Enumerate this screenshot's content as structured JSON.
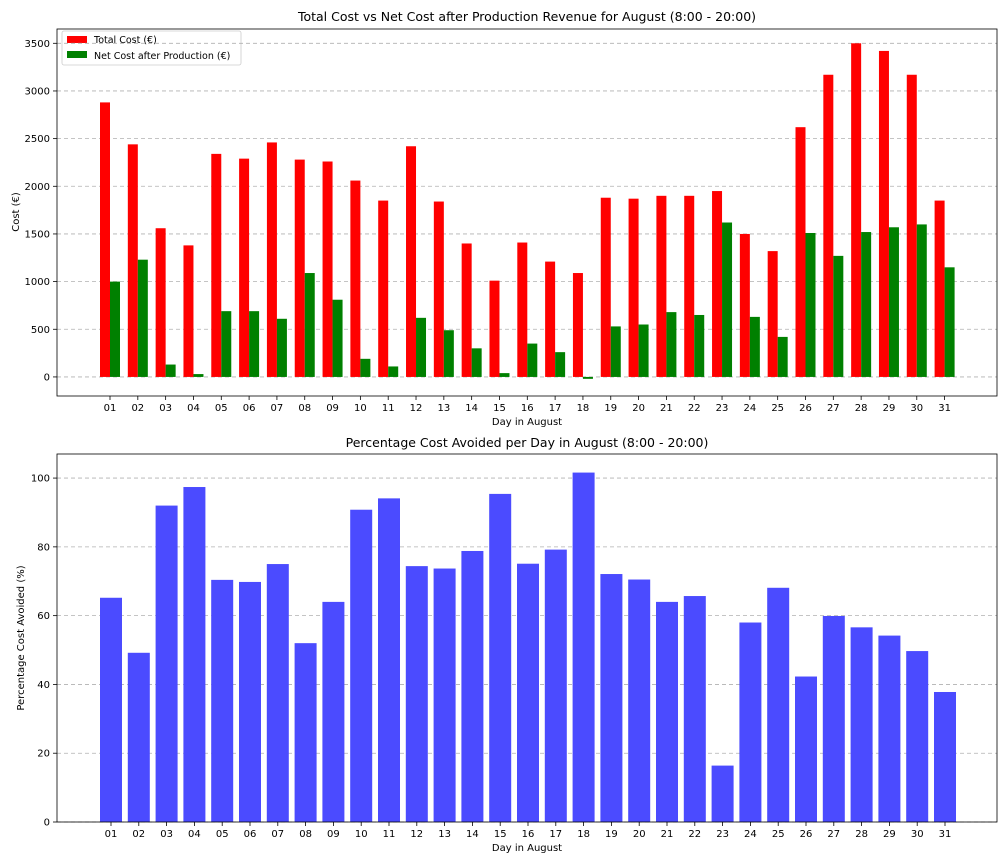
{
  "chart_data": [
    {
      "type": "bar",
      "title": "Total Cost vs Net Cost after Production Revenue for August (8:00 - 20:00)",
      "xlabel": "Day in August",
      "ylabel": "Cost (€)",
      "ylim": [
        -200,
        3650
      ],
      "yticks": [
        0,
        500,
        1000,
        1500,
        2000,
        2500,
        3000,
        3500
      ],
      "grid": true,
      "legend_position": "top-left",
      "categories": [
        "01",
        "02",
        "03",
        "04",
        "05",
        "06",
        "07",
        "08",
        "09",
        "10",
        "11",
        "12",
        "13",
        "14",
        "15",
        "16",
        "17",
        "18",
        "19",
        "20",
        "21",
        "22",
        "23",
        "24",
        "25",
        "26",
        "27",
        "28",
        "29",
        "30",
        "31"
      ],
      "series": [
        {
          "name": "Total Cost (€)",
          "color": "#ff0000",
          "values": [
            2880,
            2440,
            1560,
            1380,
            2340,
            2290,
            2460,
            2280,
            2260,
            2060,
            1850,
            2420,
            1840,
            1400,
            1010,
            1410,
            1210,
            1090,
            1880,
            1870,
            1900,
            1900,
            1950,
            1500,
            1320,
            2620,
            3170,
            3500,
            3420,
            3170,
            1850
          ]
        },
        {
          "name": "Net Cost after Production (€)",
          "color": "#008000",
          "values": [
            1000,
            1230,
            130,
            30,
            690,
            690,
            610,
            1090,
            810,
            190,
            110,
            620,
            490,
            300,
            40,
            350,
            260,
            -20,
            530,
            550,
            680,
            650,
            1620,
            630,
            420,
            1510,
            1270,
            1520,
            1570,
            1600,
            1150
          ]
        }
      ]
    },
    {
      "type": "bar",
      "title": "Percentage Cost Avoided per Day in August (8:00 - 20:00)",
      "xlabel": "Day in August",
      "ylabel": "Percentage Cost Avoided (%)",
      "ylim": [
        0,
        107
      ],
      "yticks": [
        0,
        20,
        40,
        60,
        80,
        100
      ],
      "grid": true,
      "categories": [
        "01",
        "02",
        "03",
        "04",
        "05",
        "06",
        "07",
        "08",
        "09",
        "10",
        "11",
        "12",
        "13",
        "14",
        "15",
        "16",
        "17",
        "18",
        "19",
        "20",
        "21",
        "22",
        "23",
        "24",
        "25",
        "26",
        "27",
        "28",
        "29",
        "30",
        "31"
      ],
      "series": [
        {
          "color": "#4b4bff",
          "values": [
            65.2,
            49.2,
            92.0,
            97.4,
            70.4,
            69.8,
            75.0,
            52.0,
            64.0,
            90.8,
            94.1,
            74.4,
            73.7,
            78.8,
            95.4,
            75.1,
            79.2,
            101.6,
            72.1,
            70.5,
            64.0,
            65.7,
            16.4,
            58.0,
            68.1,
            42.3,
            59.9,
            56.6,
            54.2,
            49.7,
            37.8
          ]
        }
      ]
    }
  ]
}
